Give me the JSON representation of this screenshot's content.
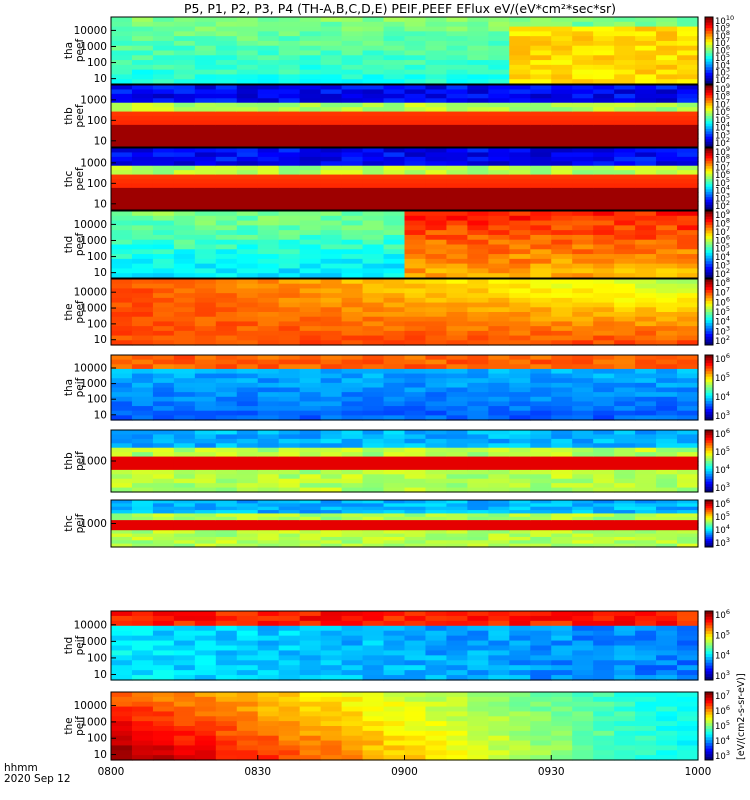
{
  "chart_data": {
    "type": "heatmap",
    "title": "P5, P1, P2, P3, P4 (TH-A,B,C,D,E) PEIF,PEEF EFlux eV/(eV*cm²*sec*sr)",
    "colorbar_label": "[eV/(cm2-s-sr-eV)]",
    "time_label": "hhmm",
    "date_label": "2020 Sep 12",
    "x_ticks": [
      "0800",
      "0830",
      "0900",
      "0930",
      "1000"
    ],
    "panels": [
      {
        "probe": "tha",
        "product": "peef",
        "y_ticks": [
          "10000",
          "1000",
          "100",
          "10"
        ],
        "cbar_ticks": [
          "10^10",
          "10^9",
          "10^8",
          "10^7",
          "10^6",
          "10^5",
          "10^4",
          "10^3",
          "10^2"
        ]
      },
      {
        "probe": "thb",
        "product": "peef",
        "y_ticks": [
          "1000",
          "100",
          "10"
        ],
        "cbar_ticks": [
          "10^9",
          "10^8",
          "10^7",
          "10^6",
          "10^5",
          "10^4",
          "10^3",
          "10^2"
        ]
      },
      {
        "probe": "thc",
        "product": "peef",
        "y_ticks": [
          "1000",
          "100",
          "10"
        ],
        "cbar_ticks": [
          "10^9",
          "10^8",
          "10^7",
          "10^6",
          "10^5",
          "10^4",
          "10^3",
          "10^2"
        ]
      },
      {
        "probe": "thd",
        "product": "peef",
        "y_ticks": [
          "10000",
          "1000",
          "100",
          "10"
        ],
        "cbar_ticks": [
          "10^9",
          "10^8",
          "10^7",
          "10^6",
          "10^5",
          "10^4",
          "10^3",
          "10^2"
        ]
      },
      {
        "probe": "the",
        "product": "peef",
        "y_ticks": [
          "10000",
          "1000",
          "100",
          "10"
        ],
        "cbar_ticks": [
          "10^8",
          "10^7",
          "10^6",
          "10^5",
          "10^4",
          "10^3",
          "10^2"
        ]
      },
      {
        "probe": "tha",
        "product": "peif",
        "y_ticks": [
          "10000",
          "1000",
          "100",
          "10"
        ],
        "cbar_ticks": [
          "10^6",
          "10^5",
          "10^4",
          "10^3"
        ]
      },
      {
        "probe": "thb",
        "product": "peif",
        "y_ticks": [
          "1000"
        ],
        "cbar_ticks": [
          "10^6",
          "10^5",
          "10^4",
          "10^3"
        ]
      },
      {
        "probe": "thc",
        "product": "peif",
        "y_ticks": [
          "1000"
        ],
        "cbar_ticks": [
          "10^6",
          "10^5",
          "10^4",
          "10^3"
        ]
      },
      {
        "probe": "thd",
        "product": "peif",
        "y_ticks": [
          "10000",
          "1000",
          "100",
          "10"
        ],
        "cbar_ticks": [
          "10^6",
          "10^5",
          "10^4",
          "10^3"
        ]
      },
      {
        "probe": "the",
        "product": "peif",
        "y_ticks": [
          "10000",
          "1000",
          "100",
          "10"
        ],
        "cbar_ticks": [
          "10^7",
          "10^6",
          "10^5",
          "10^4",
          "10^3"
        ]
      }
    ]
  }
}
